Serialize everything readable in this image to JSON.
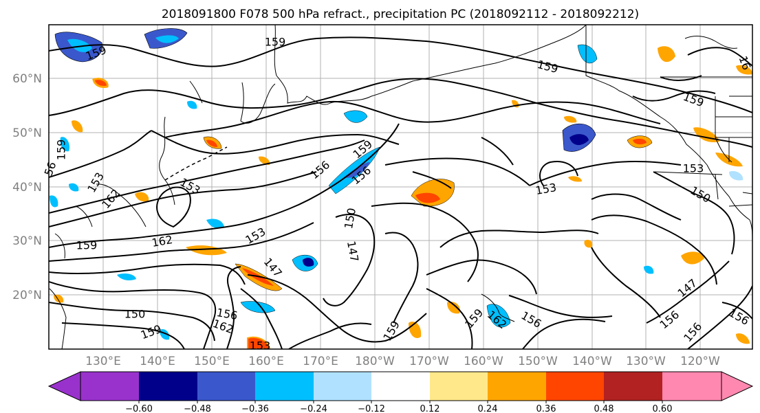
{
  "title": "2018091800 F078 500 hPa refract., precipitation PC (2018092112 - 2018092212)",
  "map": {
    "lat_labels": [
      "60°N",
      "50°N",
      "40°N",
      "30°N",
      "20°N"
    ],
    "lon_labels": [
      "130°E",
      "140°E",
      "150°E",
      "160°E",
      "170°E",
      "180°W",
      "170°W",
      "160°W",
      "150°W",
      "140°W",
      "130°W",
      "120°W"
    ],
    "contour_labels": [
      {
        "text": "159"
      },
      {
        "text": "159"
      },
      {
        "text": "159"
      },
      {
        "text": "159"
      },
      {
        "text": "16"
      },
      {
        "text": "159"
      },
      {
        "text": "56"
      },
      {
        "text": "153"
      },
      {
        "text": "162"
      },
      {
        "text": "153"
      },
      {
        "text": "156"
      },
      {
        "text": "159"
      },
      {
        "text": "156"
      },
      {
        "text": "150"
      },
      {
        "text": "153"
      },
      {
        "text": "153"
      },
      {
        "text": "150"
      },
      {
        "text": "159"
      },
      {
        "text": "162"
      },
      {
        "text": "153"
      },
      {
        "text": "147"
      },
      {
        "text": "147"
      },
      {
        "text": "150"
      },
      {
        "text": "156"
      },
      {
        "text": "159"
      },
      {
        "text": "162"
      },
      {
        "text": "159"
      },
      {
        "text": "159"
      },
      {
        "text": "162"
      },
      {
        "text": "156"
      },
      {
        "text": "147"
      },
      {
        "text": "156"
      },
      {
        "text": "156"
      },
      {
        "text": "156"
      },
      {
        "text": "153"
      }
    ]
  },
  "colorbar": {
    "tick_labels": [
      "−0.60",
      "−0.48",
      "−0.36",
      "−0.24",
      "−0.12",
      "0.12",
      "0.24",
      "0.36",
      "0.48",
      "0.60"
    ],
    "colors": [
      "#9932cc",
      "#00008b",
      "#3a58cc",
      "#00bfff",
      "#b0e2ff",
      "#ffffff",
      "#ffe88a",
      "#ffa500",
      "#ff4500",
      "#b22222",
      "#ff88b0"
    ]
  }
}
